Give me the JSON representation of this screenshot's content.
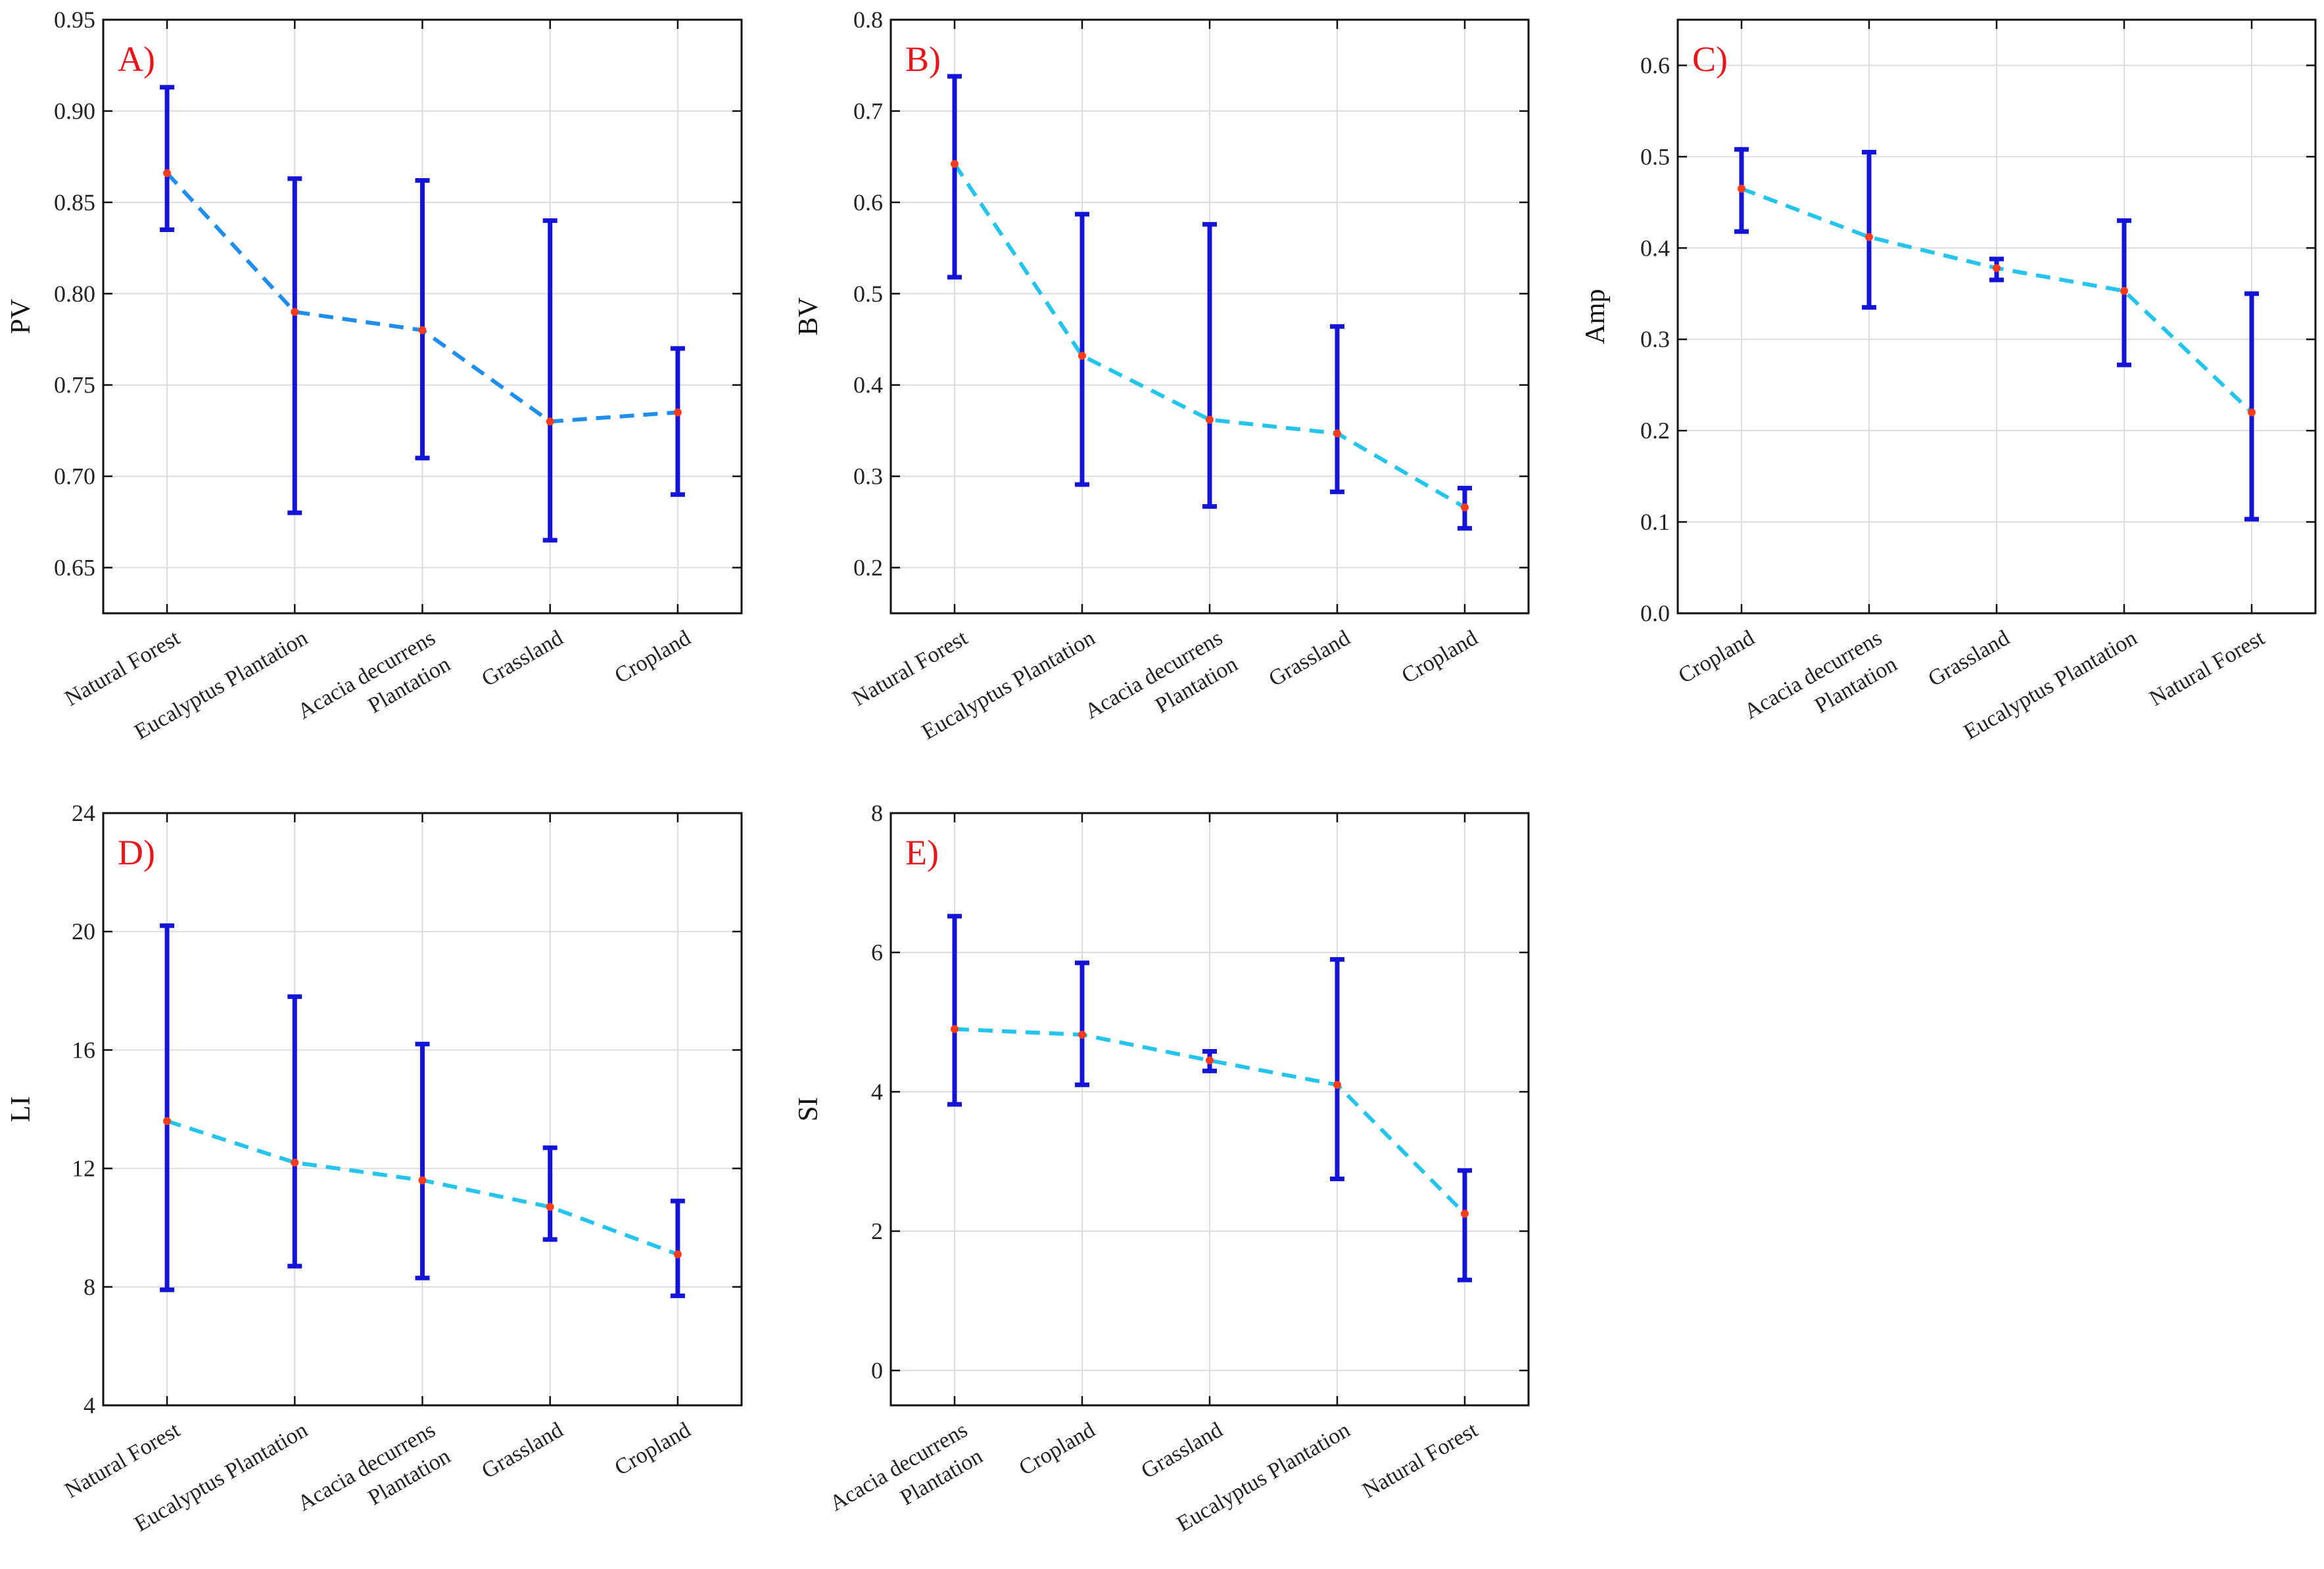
{
  "colors": {
    "error_bar": "#1414d8",
    "mean_point": "#ff3b1a",
    "trend_line_A": "#1f8ef0",
    "trend_line": "#25c4ec",
    "panel_label": "#e8151b"
  },
  "chart_data": [
    {
      "type": "line",
      "panel_label": "A)",
      "title": "",
      "xlabel": "",
      "ylabel": "PV",
      "ylim": [
        0.625,
        0.95
      ],
      "yticks": [
        0.65,
        0.7,
        0.75,
        0.8,
        0.85,
        0.9,
        0.95
      ],
      "ytick_labels": [
        "0.65",
        "0.70",
        "0.75",
        "0.80",
        "0.85",
        "0.90",
        "0.95"
      ],
      "categories": [
        [
          "Natural Forest"
        ],
        [
          "Eucalyptus Plantation"
        ],
        [
          "Acacia decurrens",
          "Plantation"
        ],
        [
          "Grassland"
        ],
        [
          "Cropland"
        ]
      ],
      "series": [
        {
          "name": "PV",
          "mean": [
            0.866,
            0.79,
            0.78,
            0.73,
            0.735
          ],
          "lower": [
            0.835,
            0.68,
            0.71,
            0.665,
            0.69
          ],
          "upper": [
            0.913,
            0.863,
            0.862,
            0.84,
            0.77
          ]
        }
      ],
      "grid": true
    },
    {
      "type": "line",
      "panel_label": "B)",
      "title": "",
      "xlabel": "",
      "ylabel": "BV",
      "ylim": [
        0.15,
        0.8
      ],
      "yticks": [
        0.2,
        0.3,
        0.4,
        0.5,
        0.6,
        0.7,
        0.8
      ],
      "ytick_labels": [
        "0.2",
        "0.3",
        "0.4",
        "0.5",
        "0.6",
        "0.7",
        "0.8"
      ],
      "categories": [
        [
          "Natural Forest"
        ],
        [
          "Eucalyptus Plantation"
        ],
        [
          "Acacia decurrens",
          "Plantation"
        ],
        [
          "Grassland"
        ],
        [
          "Cropland"
        ]
      ],
      "series": [
        {
          "name": "BV",
          "mean": [
            0.642,
            0.432,
            0.362,
            0.347,
            0.266
          ],
          "lower": [
            0.518,
            0.291,
            0.267,
            0.283,
            0.243
          ],
          "upper": [
            0.738,
            0.587,
            0.576,
            0.464,
            0.287
          ]
        }
      ],
      "grid": true
    },
    {
      "type": "line",
      "panel_label": "C)",
      "title": "",
      "xlabel": "",
      "ylabel": "Amp",
      "ylim": [
        0.0,
        0.65
      ],
      "yticks": [
        0.0,
        0.1,
        0.2,
        0.3,
        0.4,
        0.5,
        0.6
      ],
      "ytick_labels": [
        "0.0",
        "0.1",
        "0.2",
        "0.3",
        "0.4",
        "0.5",
        "0.6"
      ],
      "categories": [
        [
          "Cropland"
        ],
        [
          "Acacia decurrens",
          "Plantation"
        ],
        [
          "Grassland"
        ],
        [
          "Eucalyptus Plantation"
        ],
        [
          "Natural Forest"
        ]
      ],
      "series": [
        {
          "name": "Amp",
          "mean": [
            0.465,
            0.412,
            0.378,
            0.353,
            0.22
          ],
          "lower": [
            0.418,
            0.335,
            0.365,
            0.272,
            0.103
          ],
          "upper": [
            0.508,
            0.505,
            0.388,
            0.43,
            0.35
          ]
        }
      ],
      "grid": true
    },
    {
      "type": "line",
      "panel_label": "D)",
      "title": "",
      "xlabel": "",
      "ylabel": "LI",
      "ylim": [
        4,
        24
      ],
      "yticks": [
        4,
        8,
        12,
        16,
        20,
        24
      ],
      "ytick_labels": [
        "4",
        "8",
        "12",
        "16",
        "20",
        "24"
      ],
      "categories": [
        [
          "Natural Forest"
        ],
        [
          "Eucalyptus Plantation"
        ],
        [
          "Acacia decurrens",
          "Plantation"
        ],
        [
          "Grassland"
        ],
        [
          "Cropland"
        ]
      ],
      "series": [
        {
          "name": "LI",
          "mean": [
            13.6,
            12.2,
            11.6,
            10.7,
            9.1
          ],
          "lower": [
            7.9,
            8.7,
            8.3,
            9.6,
            7.7
          ],
          "upper": [
            20.2,
            17.8,
            16.2,
            12.7,
            10.9
          ]
        }
      ],
      "grid": true
    },
    {
      "type": "line",
      "panel_label": "E)",
      "title": "",
      "xlabel": "",
      "ylabel": "SI",
      "ylim": [
        -0.5,
        8
      ],
      "yticks": [
        0,
        2,
        4,
        6,
        8
      ],
      "ytick_labels": [
        "0",
        "2",
        "4",
        "6",
        "8"
      ],
      "categories": [
        [
          "Acacia decurrens",
          "Plantation"
        ],
        [
          "Cropland"
        ],
        [
          "Grassland"
        ],
        [
          "Eucalyptus Plantation"
        ],
        [
          "Natural Forest"
        ]
      ],
      "series": [
        {
          "name": "SI",
          "mean": [
            4.9,
            4.82,
            4.45,
            4.1,
            2.25
          ],
          "lower": [
            3.82,
            4.1,
            4.3,
            2.75,
            1.3
          ],
          "upper": [
            6.52,
            5.85,
            4.58,
            5.9,
            2.87
          ]
        }
      ],
      "grid": true
    }
  ]
}
